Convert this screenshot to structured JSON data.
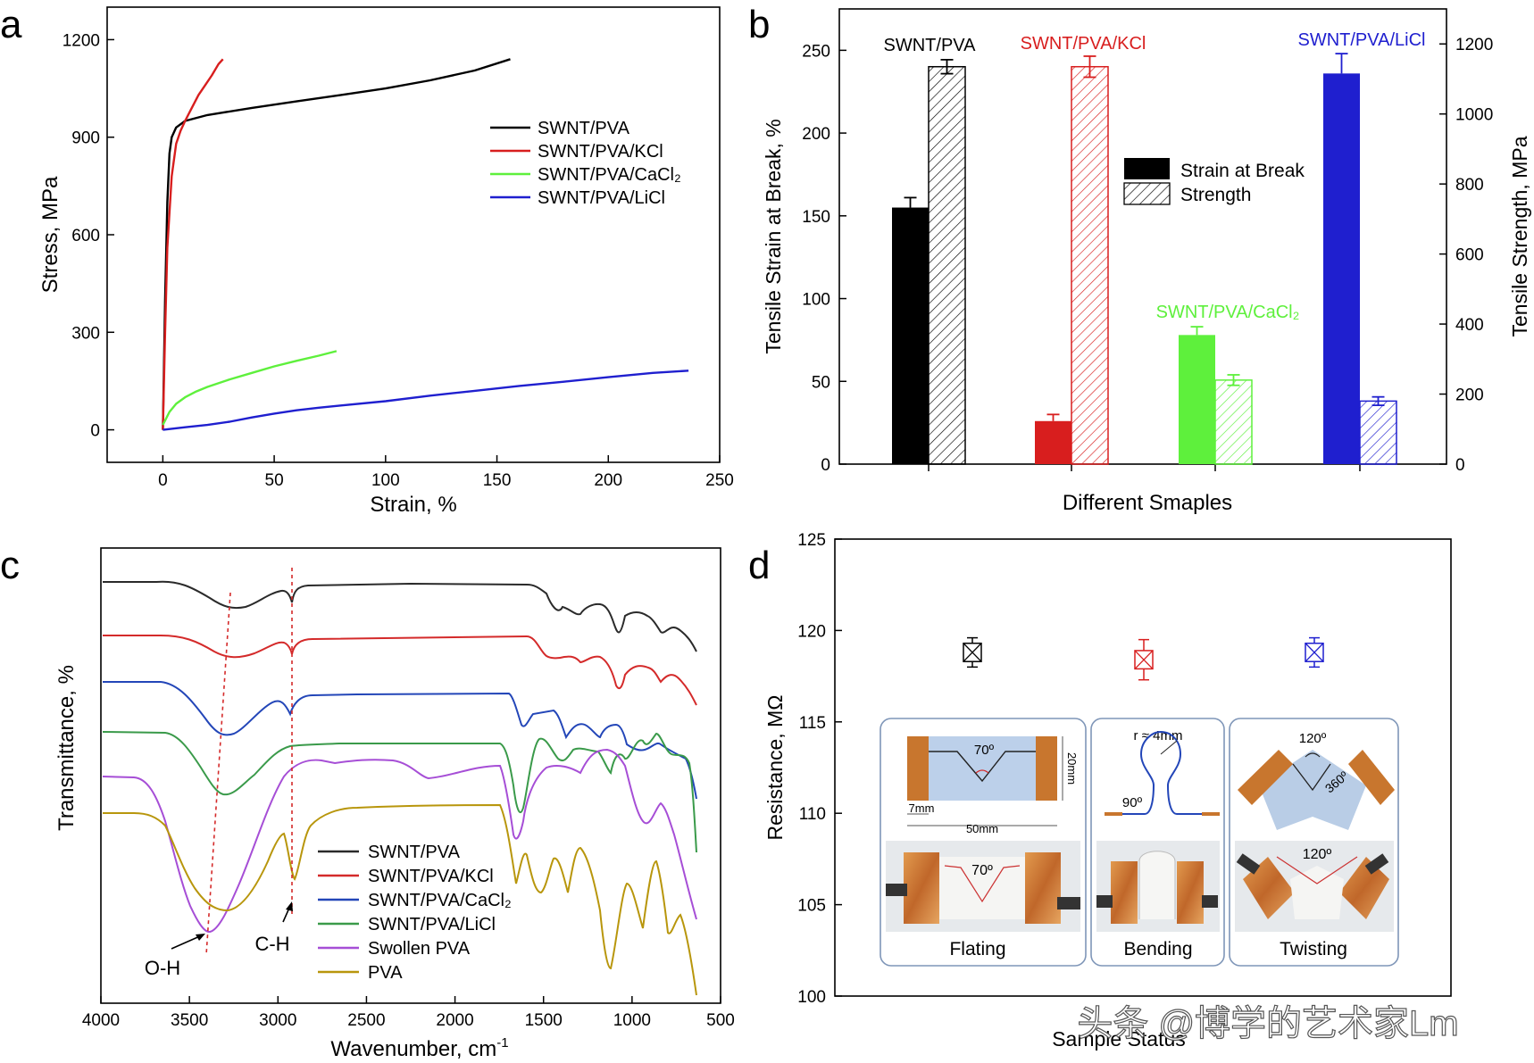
{
  "watermark": "头条 @博学的艺术家Lm",
  "colors": {
    "black": "#000000",
    "red": "#d81e1e",
    "green": "#5ef03c",
    "blue": "#1f1fcf",
    "ftir_black": "#2a2a2a",
    "ftir_red": "#d42a2a",
    "ftir_blue": "#2346b8",
    "ftir_green": "#3a9a4a",
    "ftir_purple": "#a64ed6",
    "ftir_gold": "#b8960c",
    "photo_copper": "#c8762e",
    "photo_bg": "#dfe6ef",
    "panel_border": "#7f96b8"
  },
  "chart_data": [
    {
      "panel": "a",
      "type": "line",
      "xlabel": "Strain, %",
      "ylabel": "Stress, MPa",
      "xlim": [
        -25,
        250
      ],
      "ylim": [
        -100,
        1300
      ],
      "xticks": [
        0,
        50,
        100,
        150,
        200,
        250
      ],
      "yticks": [
        0,
        300,
        600,
        900,
        1200
      ],
      "legend_position": "right",
      "series": [
        {
          "name": "SWNT/PVA",
          "color": "#000000",
          "x": [
            0,
            1,
            2,
            3,
            4,
            6,
            10,
            20,
            40,
            60,
            80,
            100,
            120,
            140,
            156
          ],
          "y": [
            0,
            400,
            700,
            850,
            900,
            930,
            950,
            968,
            990,
            1010,
            1030,
            1050,
            1075,
            1105,
            1140
          ]
        },
        {
          "name": "SWNT/PVA/KCl",
          "color": "#d81e1e",
          "x": [
            0,
            1,
            2,
            4,
            6,
            8,
            10,
            13,
            16,
            19,
            22,
            25,
            27
          ],
          "y": [
            0,
            300,
            560,
            780,
            880,
            920,
            950,
            990,
            1030,
            1060,
            1090,
            1125,
            1140
          ]
        },
        {
          "name": "SWNT/PVA/CaCl₂",
          "color": "#5ef03c",
          "x": [
            0,
            3,
            6,
            10,
            15,
            20,
            30,
            40,
            50,
            60,
            70,
            78
          ],
          "y": [
            15,
            55,
            80,
            100,
            118,
            132,
            155,
            175,
            195,
            212,
            228,
            242
          ]
        },
        {
          "name": "SWNT/PVA/LiCl",
          "color": "#1f1fcf",
          "x": [
            0,
            10,
            20,
            30,
            40,
            50,
            60,
            70,
            80,
            100,
            120,
            140,
            160,
            180,
            200,
            220,
            236
          ],
          "y": [
            0,
            8,
            15,
            25,
            38,
            50,
            60,
            68,
            75,
            88,
            105,
            120,
            135,
            148,
            162,
            175,
            182
          ]
        }
      ]
    },
    {
      "panel": "b",
      "type": "bar",
      "xlabel": "Different Smaples",
      "ylabel": "Tensile Strain at Break, %",
      "ylabel_right": "Tensile Strength, MPa",
      "ylim": [
        0,
        275
      ],
      "ylim_right": [
        0,
        1300
      ],
      "yticks": [
        0,
        50,
        100,
        150,
        200,
        250
      ],
      "yticks_right": [
        0,
        200,
        400,
        600,
        800,
        1000,
        1200
      ],
      "legend": [
        "Strain at Break",
        "Strength"
      ],
      "categories": [
        "SWNT/PVA",
        "SWNT/PVA/KCl",
        "SWNT/PVA/CaCl₂",
        "SWNT/PVA/LiCl"
      ],
      "category_colors": [
        "#000000",
        "#d81e1e",
        "#5ef03c",
        "#1f1fcf"
      ],
      "series": [
        {
          "name": "Strain at Break",
          "values": [
            155,
            26,
            78,
            236
          ],
          "errors": [
            6,
            4,
            5,
            12
          ]
        },
        {
          "name": "Strength",
          "axis": "right",
          "values": [
            1135,
            1135,
            240,
            180
          ],
          "errors": [
            20,
            30,
            15,
            12
          ]
        }
      ]
    },
    {
      "panel": "c",
      "type": "line",
      "xlabel": "Wavenumber, cm",
      "xlabel_sup": "-1",
      "ylabel": "Transmittance, %",
      "xlim": [
        4000,
        500
      ],
      "xticks": [
        4000,
        3500,
        3000,
        2500,
        2000,
        1500,
        1000,
        500
      ],
      "annotations": [
        "O-H",
        "C-H"
      ],
      "series": [
        {
          "name": "SWNT/PVA",
          "color": "#2a2a2a"
        },
        {
          "name": "SWNT/PVA/KCl",
          "color": "#d42a2a"
        },
        {
          "name": "SWNT/PVA/CaCl₂",
          "color": "#2346b8"
        },
        {
          "name": "SWNT/PVA/LiCl",
          "color": "#3a9a4a"
        },
        {
          "name": "Swollen PVA",
          "color": "#a64ed6"
        },
        {
          "name": "PVA",
          "color": "#b8960c"
        }
      ]
    },
    {
      "panel": "d",
      "type": "scatter",
      "xlabel": "Sample Status",
      "ylabel": "Resistance, MΩ",
      "ylim": [
        100,
        125
      ],
      "yticks": [
        100,
        105,
        110,
        115,
        120,
        125
      ],
      "categories": [
        "Flating",
        "Bending",
        "Twisting"
      ],
      "category_colors": [
        "#000000",
        "#d81e1e",
        "#1f1fcf"
      ],
      "values": [
        118.8,
        118.4,
        118.8
      ],
      "whisker_low": [
        118.0,
        117.3,
        118.0
      ],
      "whisker_high": [
        119.6,
        119.5,
        119.6
      ],
      "box_low": [
        118.3,
        117.9,
        118.3
      ],
      "box_high": [
        119.3,
        118.9,
        119.3
      ],
      "insets": {
        "flating": {
          "angle": "70º",
          "height": "20mm",
          "edge": "7mm",
          "length": "50mm",
          "photo_angle": "70º"
        },
        "bending": {
          "radius": "r ≈ 4mm",
          "angle": "90º"
        },
        "twisting": {
          "angle": "120º",
          "rotation": "360º",
          "photo_angle": "120º"
        }
      }
    }
  ]
}
